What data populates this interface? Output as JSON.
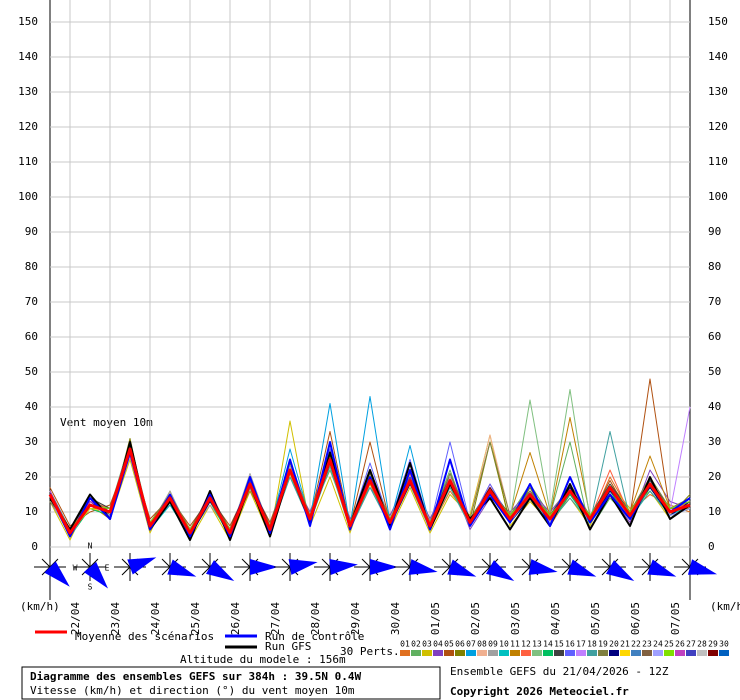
{
  "chart_data": {
    "type": "line",
    "title": "Diagramme des ensembles GEFS sur 384h : 39.5N 0.4W",
    "subtitle": "Vitesse (km/h) et direction (°) du vent moyen 10m",
    "run_label": "Ensemble GEFS du 21/04/2026 - 12Z",
    "copyright": "Copyright 2026 Meteociel.fr",
    "annotation": "Vent moyen 10m",
    "altitude": "Altitude du modele : 156m",
    "perts_label": "30 Perts.",
    "y_unit_label": "(km/h)",
    "compass_labels": [
      "N",
      "W",
      "E",
      "S"
    ],
    "ylim": [
      0,
      150
    ],
    "yticks": [
      0,
      10,
      20,
      30,
      40,
      50,
      60,
      70,
      80,
      90,
      100,
      110,
      120,
      130,
      140,
      150
    ],
    "grid": true,
    "categories": [
      null,
      "22/04",
      null,
      "23/04",
      null,
      "24/04",
      null,
      "25/04",
      null,
      "26/04",
      null,
      "27/04",
      null,
      "28/04",
      null,
      "29/04",
      null,
      "30/04",
      null,
      "01/05",
      null,
      "02/05",
      null,
      "03/05",
      null,
      "04/05",
      null,
      "05/05",
      null,
      "06/05",
      null,
      "07/05",
      null
    ],
    "wind_direction": {
      "color": "#0000ff",
      "values": [
        315,
        320,
        250,
        290,
        300,
        270,
        260,
        265,
        270,
        280,
        290,
        300,
        280,
        290,
        300,
        290,
        285
      ]
    },
    "series": [
      {
        "name": "Moyenne des scénarios",
        "color": "#ff0000",
        "values": [
          15,
          4,
          12,
          10,
          28,
          6,
          14,
          4,
          14,
          4,
          18,
          5,
          22,
          8,
          25,
          6,
          19,
          7,
          19,
          6,
          19,
          7,
          16,
          8,
          15,
          8,
          16,
          8,
          17,
          9,
          18,
          10,
          12
        ]
      },
      {
        "name": "Run de contrôle",
        "color": "#0000ff",
        "values": [
          15,
          3,
          14,
          8,
          27,
          5,
          15,
          3,
          15,
          3,
          20,
          4,
          25,
          6,
          30,
          5,
          20,
          5,
          22,
          5,
          25,
          6,
          15,
          7,
          18,
          6,
          20,
          7,
          15,
          8,
          18,
          10,
          14
        ]
      },
      {
        "name": "Run GFS",
        "color": "#000000",
        "values": [
          14,
          5,
          15,
          8,
          30,
          5,
          13,
          2,
          16,
          2,
          18,
          3,
          22,
          7,
          27,
          6,
          22,
          6,
          24,
          5,
          18,
          8,
          14,
          5,
          14,
          6,
          18,
          5,
          15,
          6,
          20,
          8,
          12
        ]
      },
      {
        "name": "01",
        "color": "#e07020",
        "values": [
          14,
          3,
          13,
          9,
          26,
          5,
          15,
          3,
          13,
          3,
          17,
          4,
          24,
          7,
          28,
          5,
          18,
          6,
          20,
          5,
          16,
          8,
          15,
          7,
          14,
          6,
          15,
          7,
          20,
          10,
          15,
          12,
          10
        ]
      },
      {
        "name": "02",
        "color": "#60b060",
        "values": [
          16,
          5,
          11,
          11,
          30,
          7,
          13,
          5,
          15,
          5,
          19,
          6,
          20,
          9,
          22,
          7,
          20,
          8,
          18,
          7,
          22,
          6,
          17,
          9,
          18,
          9,
          30,
          5,
          14,
          8,
          20,
          9,
          14
        ]
      },
      {
        "name": "03",
        "color": "#d0c000",
        "values": [
          13,
          2,
          14,
          8,
          25,
          4,
          16,
          2,
          12,
          2,
          16,
          3,
          36,
          6,
          20,
          4,
          21,
          5,
          17,
          4,
          15,
          9,
          32,
          6,
          13,
          7,
          14,
          6,
          18,
          11,
          16,
          8,
          13
        ]
      },
      {
        "name": "04",
        "color": "#8040c0",
        "values": [
          15,
          4,
          12,
          10,
          29,
          6,
          12,
          4,
          16,
          4,
          20,
          5,
          21,
          10,
          26,
          8,
          17,
          9,
          21,
          8,
          20,
          5,
          14,
          10,
          16,
          10,
          17,
          9,
          15,
          7,
          22,
          13,
          11
        ]
      },
      {
        "name": "05",
        "color": "#b05010",
        "values": [
          17,
          6,
          10,
          12,
          27,
          8,
          14,
          6,
          14,
          6,
          18,
          7,
          23,
          8,
          33,
          6,
          30,
          7,
          19,
          6,
          21,
          7,
          16,
          8,
          15,
          8,
          16,
          8,
          19,
          9,
          48,
          10,
          12
        ]
      },
      {
        "name": "06",
        "color": "#808000",
        "values": [
          14,
          3,
          15,
          9,
          31,
          5,
          13,
          3,
          15,
          3,
          17,
          4,
          22,
          7,
          24,
          5,
          19,
          6,
          20,
          5,
          18,
          6,
          30,
          7,
          17,
          7,
          15,
          7,
          16,
          8,
          17,
          9,
          15
        ]
      },
      {
        "name": "07",
        "color": "#00a0e0",
        "values": [
          16,
          4,
          13,
          10,
          28,
          6,
          15,
          4,
          13,
          4,
          19,
          5,
          28,
          8,
          41,
          6,
          43,
          7,
          29,
          6,
          18,
          7,
          16,
          8,
          14,
          8,
          17,
          8,
          17,
          9,
          19,
          10,
          12
        ]
      },
      {
        "name": "08",
        "color": "#f0b090",
        "values": [
          15,
          5,
          12,
          11,
          26,
          7,
          14,
          5,
          14,
          5,
          18,
          6,
          21,
          9,
          25,
          7,
          18,
          8,
          22,
          7,
          19,
          8,
          32,
          9,
          16,
          9,
          18,
          9,
          16,
          10,
          18,
          11,
          13
        ]
      },
      {
        "name": "09",
        "color": "#a0a0a0",
        "values": [
          13,
          4,
          11,
          9,
          30,
          6,
          16,
          4,
          12,
          4,
          21,
          5,
          20,
          8,
          27,
          6,
          20,
          7,
          18,
          6,
          20,
          7,
          15,
          8,
          15,
          8,
          16,
          8,
          18,
          9,
          17,
          10,
          14
        ]
      },
      {
        "name": "10",
        "color": "#00c0c0",
        "values": [
          15,
          3,
          14,
          10,
          27,
          5,
          12,
          3,
          15,
          3,
          18,
          4,
          23,
          7,
          26,
          5,
          19,
          6,
          19,
          5,
          19,
          6,
          17,
          7,
          16,
          7,
          15,
          7,
          17,
          8,
          16,
          9,
          12
        ]
      },
      {
        "name": "11",
        "color": "#c08000",
        "values": [
          14,
          5,
          12,
          8,
          28,
          7,
          14,
          5,
          14,
          5,
          16,
          6,
          22,
          9,
          24,
          7,
          22,
          8,
          20,
          7,
          17,
          8,
          16,
          9,
          27,
          9,
          37,
          9,
          16,
          10,
          26,
          11,
          11
        ]
      },
      {
        "name": "12",
        "color": "#ff6040",
        "values": [
          16,
          4,
          13,
          11,
          29,
          6,
          15,
          4,
          16,
          4,
          19,
          5,
          24,
          8,
          25,
          6,
          19,
          7,
          21,
          6,
          20,
          7,
          18,
          8,
          15,
          8,
          16,
          8,
          22,
          9,
          18,
          10,
          13
        ]
      },
      {
        "name": "13",
        "color": "#80c080",
        "values": [
          15,
          4,
          12,
          10,
          27,
          6,
          14,
          4,
          14,
          4,
          18,
          5,
          22,
          8,
          26,
          6,
          18,
          7,
          19,
          6,
          19,
          7,
          16,
          8,
          42,
          10,
          45,
          8,
          17,
          9,
          18,
          10,
          12
        ]
      },
      {
        "name": "14",
        "color": "#00c060",
        "values": [
          14,
          3,
          11,
          9,
          28,
          5,
          13,
          3,
          13,
          3,
          17,
          4,
          21,
          7,
          24,
          5,
          18,
          6,
          18,
          5,
          18,
          6,
          15,
          7,
          14,
          7,
          15,
          7,
          16,
          8,
          17,
          9,
          11
        ]
      },
      {
        "name": "15",
        "color": "#404040",
        "values": [
          15,
          5,
          14,
          11,
          29,
          7,
          15,
          5,
          15,
          5,
          19,
          6,
          23,
          9,
          26,
          7,
          20,
          8,
          20,
          7,
          20,
          8,
          17,
          9,
          16,
          9,
          17,
          9,
          18,
          10,
          19,
          11,
          13
        ]
      },
      {
        "name": "16",
        "color": "#6060ff",
        "values": [
          16,
          4,
          12,
          10,
          30,
          6,
          14,
          4,
          14,
          4,
          18,
          5,
          25,
          8,
          28,
          6,
          24,
          7,
          25,
          6,
          30,
          7,
          18,
          8,
          16,
          8,
          16,
          8,
          17,
          9,
          18,
          10,
          12
        ]
      },
      {
        "name": "17",
        "color": "#c080ff",
        "values": [
          14,
          4,
          13,
          10,
          26,
          6,
          14,
          4,
          14,
          4,
          18,
          5,
          22,
          8,
          25,
          6,
          19,
          7,
          19,
          6,
          19,
          7,
          16,
          8,
          15,
          8,
          16,
          8,
          17,
          9,
          18,
          10,
          40
        ]
      },
      {
        "name": "18",
        "color": "#40a0a0",
        "values": [
          15,
          3,
          12,
          9,
          28,
          5,
          13,
          3,
          15,
          3,
          20,
          4,
          20,
          7,
          23,
          5,
          17,
          6,
          18,
          5,
          17,
          6,
          15,
          7,
          14,
          7,
          14,
          7,
          33,
          8,
          16,
          9,
          11
        ]
      },
      {
        "name": "19",
        "color": "#808040",
        "values": [
          13,
          5,
          12,
          11,
          27,
          7,
          15,
          5,
          14,
          5,
          17,
          6,
          24,
          9,
          27,
          7,
          21,
          8,
          20,
          7,
          21,
          8,
          30,
          9,
          16,
          9,
          18,
          9,
          15,
          10,
          20,
          11,
          14
        ]
      },
      {
        "name": "20",
        "color": "#000080",
        "values": [
          15,
          4,
          13,
          9,
          29,
          5,
          15,
          3,
          13,
          5,
          19,
          6,
          23,
          7,
          24,
          7,
          20,
          6,
          18,
          7,
          20,
          6,
          17,
          7,
          14,
          9,
          17,
          7,
          16,
          10,
          17,
          9,
          13
        ]
      },
      {
        "name": "21",
        "color": "#ffd700",
        "values": [
          14,
          4,
          11,
          10,
          27,
          6,
          13,
          4,
          15,
          4,
          18,
          5,
          21,
          8,
          26,
          6,
          18,
          7,
          19,
          6,
          18,
          7,
          16,
          8,
          15,
          8,
          16,
          8,
          17,
          9,
          18,
          10,
          12
        ]
      },
      {
        "name": "22",
        "color": "#4080c0",
        "values": [
          16,
          5,
          12,
          11,
          28,
          7,
          14,
          5,
          14,
          5,
          17,
          6,
          22,
          9,
          25,
          7,
          19,
          8,
          20,
          7,
          19,
          8,
          16,
          9,
          15,
          9,
          16,
          9,
          17,
          10,
          18,
          11,
          13
        ]
      },
      {
        "name": "23",
        "color": "#806040",
        "values": [
          15,
          4,
          14,
          10,
          29,
          6,
          14,
          4,
          14,
          4,
          18,
          5,
          22,
          8,
          25,
          6,
          19,
          7,
          19,
          6,
          19,
          7,
          16,
          8,
          15,
          8,
          16,
          8,
          17,
          9,
          18,
          10,
          12
        ]
      },
      {
        "name": "24",
        "color": "#a0a0ff",
        "values": [
          14,
          3,
          12,
          9,
          27,
          5,
          14,
          3,
          14,
          3,
          18,
          4,
          22,
          7,
          25,
          5,
          19,
          6,
          19,
          5,
          19,
          6,
          16,
          7,
          15,
          7,
          16,
          7,
          17,
          8,
          18,
          9,
          11
        ]
      },
      {
        "name": "25",
        "color": "#80e000",
        "values": [
          15,
          5,
          12,
          11,
          28,
          7,
          14,
          5,
          14,
          5,
          18,
          6,
          22,
          9,
          25,
          7,
          19,
          8,
          19,
          7,
          19,
          8,
          16,
          9,
          15,
          9,
          16,
          9,
          17,
          10,
          18,
          11,
          13
        ]
      },
      {
        "name": "26",
        "color": "#c040c0",
        "values": [
          16,
          4,
          13,
          10,
          28,
          6,
          14,
          4,
          15,
          4,
          18,
          5,
          22,
          8,
          25,
          6,
          20,
          7,
          19,
          6,
          19,
          7,
          16,
          8,
          15,
          8,
          16,
          8,
          17,
          9,
          18,
          10,
          12
        ]
      },
      {
        "name": "27",
        "color": "#4040c0",
        "values": [
          15,
          4,
          12,
          10,
          28,
          6,
          15,
          4,
          14,
          4,
          19,
          5,
          22,
          8,
          25,
          6,
          19,
          7,
          20,
          6,
          19,
          7,
          16,
          8,
          15,
          8,
          16,
          8,
          17,
          9,
          18,
          10,
          12
        ]
      },
      {
        "name": "28",
        "color": "#c0c0c0",
        "values": [
          14,
          4,
          12,
          10,
          28,
          6,
          14,
          4,
          14,
          4,
          18,
          5,
          23,
          8,
          25,
          6,
          19,
          7,
          19,
          6,
          20,
          7,
          16,
          8,
          15,
          8,
          16,
          8,
          17,
          9,
          18,
          10,
          12
        ]
      },
      {
        "name": "29",
        "color": "#800000",
        "values": [
          15,
          4,
          12,
          10,
          27,
          6,
          14,
          4,
          14,
          4,
          18,
          5,
          22,
          8,
          24,
          6,
          19,
          7,
          19,
          6,
          19,
          7,
          17,
          8,
          15,
          8,
          16,
          8,
          17,
          9,
          18,
          10,
          12
        ]
      },
      {
        "name": "30",
        "color": "#0060c0",
        "values": [
          15,
          4,
          12,
          10,
          28,
          6,
          14,
          4,
          14,
          4,
          18,
          5,
          22,
          8,
          25,
          6,
          19,
          7,
          19,
          6,
          19,
          7,
          16,
          8,
          15,
          8,
          16,
          8,
          17,
          9,
          18,
          10,
          12
        ]
      }
    ]
  }
}
